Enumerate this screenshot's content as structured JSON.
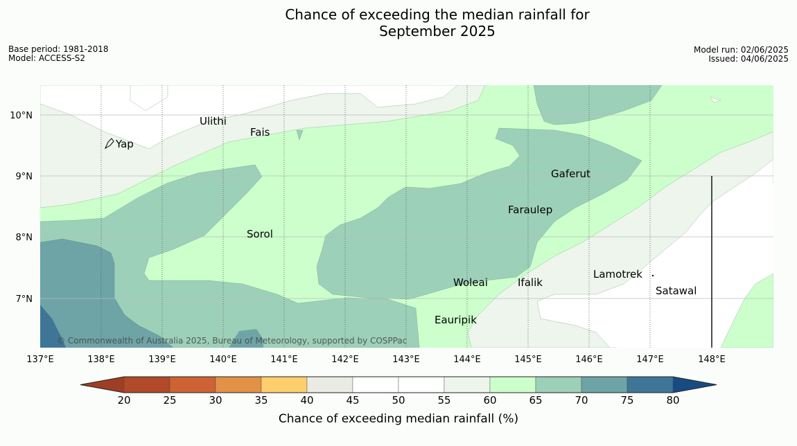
{
  "title": {
    "line1": "Chance of exceeding the median rainfall for",
    "line2": "September 2025"
  },
  "meta": {
    "base_period": "Base period: 1981-2018",
    "model": "Model: ACCESS-S2",
    "model_run": "Model run: 02/06/2025",
    "issued": "Issued: 04/06/2025"
  },
  "map": {
    "longitude_ticks": [
      "137°E",
      "138°E",
      "139°E",
      "140°E",
      "141°E",
      "142°E",
      "143°E",
      "144°E",
      "145°E",
      "146°E",
      "147°E",
      "148°E"
    ],
    "latitude_ticks": [
      "10°N",
      "9°N",
      "8°N",
      "7°N"
    ],
    "places": [
      {
        "name": "Yap"
      },
      {
        "name": "Ulithi"
      },
      {
        "name": "Fais"
      },
      {
        "name": "Gaferut"
      },
      {
        "name": "Faraulep"
      },
      {
        "name": "Sorol"
      },
      {
        "name": "Woleai"
      },
      {
        "name": "Ifalik"
      },
      {
        "name": "Lamotrek"
      },
      {
        "name": "Satawal"
      },
      {
        "name": "Eauripik"
      }
    ],
    "copyright": "© Commonwealth of Australia 2025, Bureau of Meteorology, supported by COSPPac"
  },
  "colorbar": {
    "label": "Chance of exceeding median rainfall (%)",
    "ticks": [
      "20",
      "25",
      "30",
      "35",
      "40",
      "45",
      "50",
      "55",
      "60",
      "65",
      "70",
      "75",
      "80"
    ],
    "colors": [
      "#b04a28",
      "#cd6232",
      "#e29147",
      "#fdcf6c",
      "#ebebe6",
      "#ffffff",
      "#ffffff",
      "#edf5ec",
      "#ccffcc",
      "#9dd0b9",
      "#6ea4a6",
      "#3f7698"
    ],
    "under_color": "#9e3e24",
    "over_color": "#174b82"
  }
}
